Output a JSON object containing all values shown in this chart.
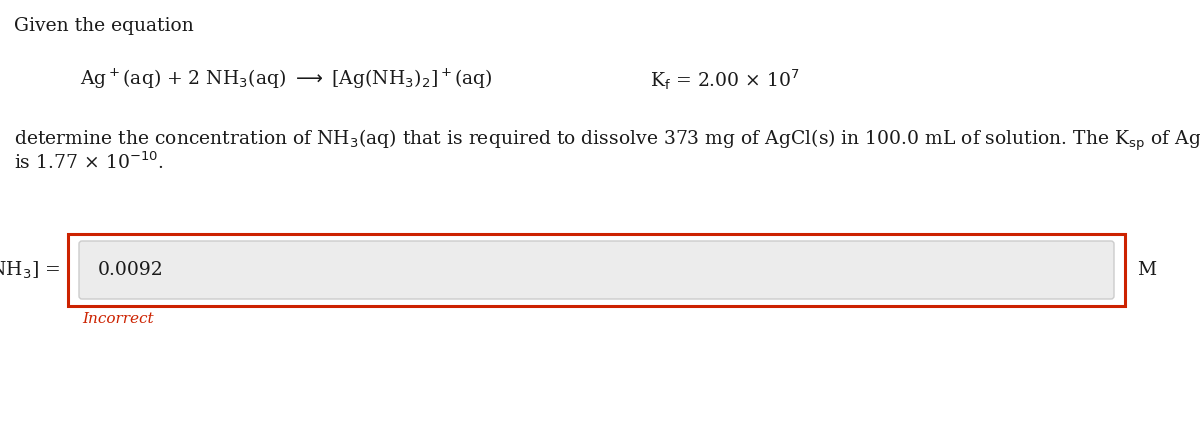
{
  "title_text": "Given the equation",
  "input_value": "0.0092",
  "unit": "M",
  "incorrect_text": "Incorrect",
  "bg_color": "#ffffff",
  "text_color": "#1a1a1a",
  "incorrect_color": "#cc2200",
  "box_border_color": "#cc2200",
  "input_bg_color": "#ececec",
  "input_border_color": "#cccccc",
  "times_symbol": "×",
  "fontsize": 13.5,
  "incorrect_fontsize": 11
}
